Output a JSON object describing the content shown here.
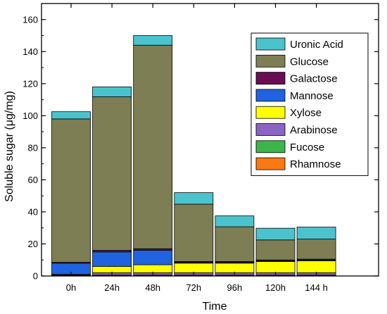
{
  "chart_data": {
    "type": "bar",
    "stacked": true,
    "xlabel": "Time",
    "ylabel": "Soluble sugar (μg/mg)",
    "ylim": [
      0,
      170
    ],
    "yticks": [
      0,
      20,
      40,
      60,
      80,
      100,
      120,
      140,
      160
    ],
    "categories": [
      "0h",
      "24h",
      "48h",
      "72h",
      "96h",
      "120h",
      "144 h"
    ],
    "legend_position": "top-right",
    "series": [
      {
        "name": "Rhamnose",
        "color": "#f97a12",
        "values": [
          0.3,
          0.3,
          0.3,
          0.3,
          0.3,
          0.3,
          0.3
        ]
      },
      {
        "name": "Fucose",
        "color": "#3cb64a",
        "values": [
          0.2,
          0.2,
          0.2,
          0.2,
          0.2,
          0.2,
          0.2
        ]
      },
      {
        "name": "Arabinose",
        "color": "#8a63c3",
        "values": [
          0.2,
          1.5,
          1.5,
          1.5,
          1.5,
          1.5,
          1.5
        ]
      },
      {
        "name": "Xylose",
        "color": "#ffff00",
        "values": [
          0.3,
          4.0,
          5.0,
          6.0,
          6.0,
          7.0,
          7.5
        ]
      },
      {
        "name": "Mannose",
        "color": "#1f63e0",
        "values": [
          7.0,
          9.0,
          9.0,
          0.5,
          0.5,
          0.5,
          0.5
        ]
      },
      {
        "name": "Galactose",
        "color": "#6b0d55",
        "values": [
          0.5,
          1.0,
          1.0,
          0.5,
          0.5,
          0.5,
          0.5
        ]
      },
      {
        "name": "Glucose",
        "color": "#7e7e54",
        "values": [
          89.5,
          95.8,
          127.0,
          35.8,
          21.7,
          12.5,
          12.5
        ]
      },
      {
        "name": "Uronic Acid",
        "color": "#4bc3cc",
        "values": [
          4.5,
          6.2,
          6.0,
          7.2,
          6.8,
          7.3,
          7.5
        ]
      }
    ]
  }
}
